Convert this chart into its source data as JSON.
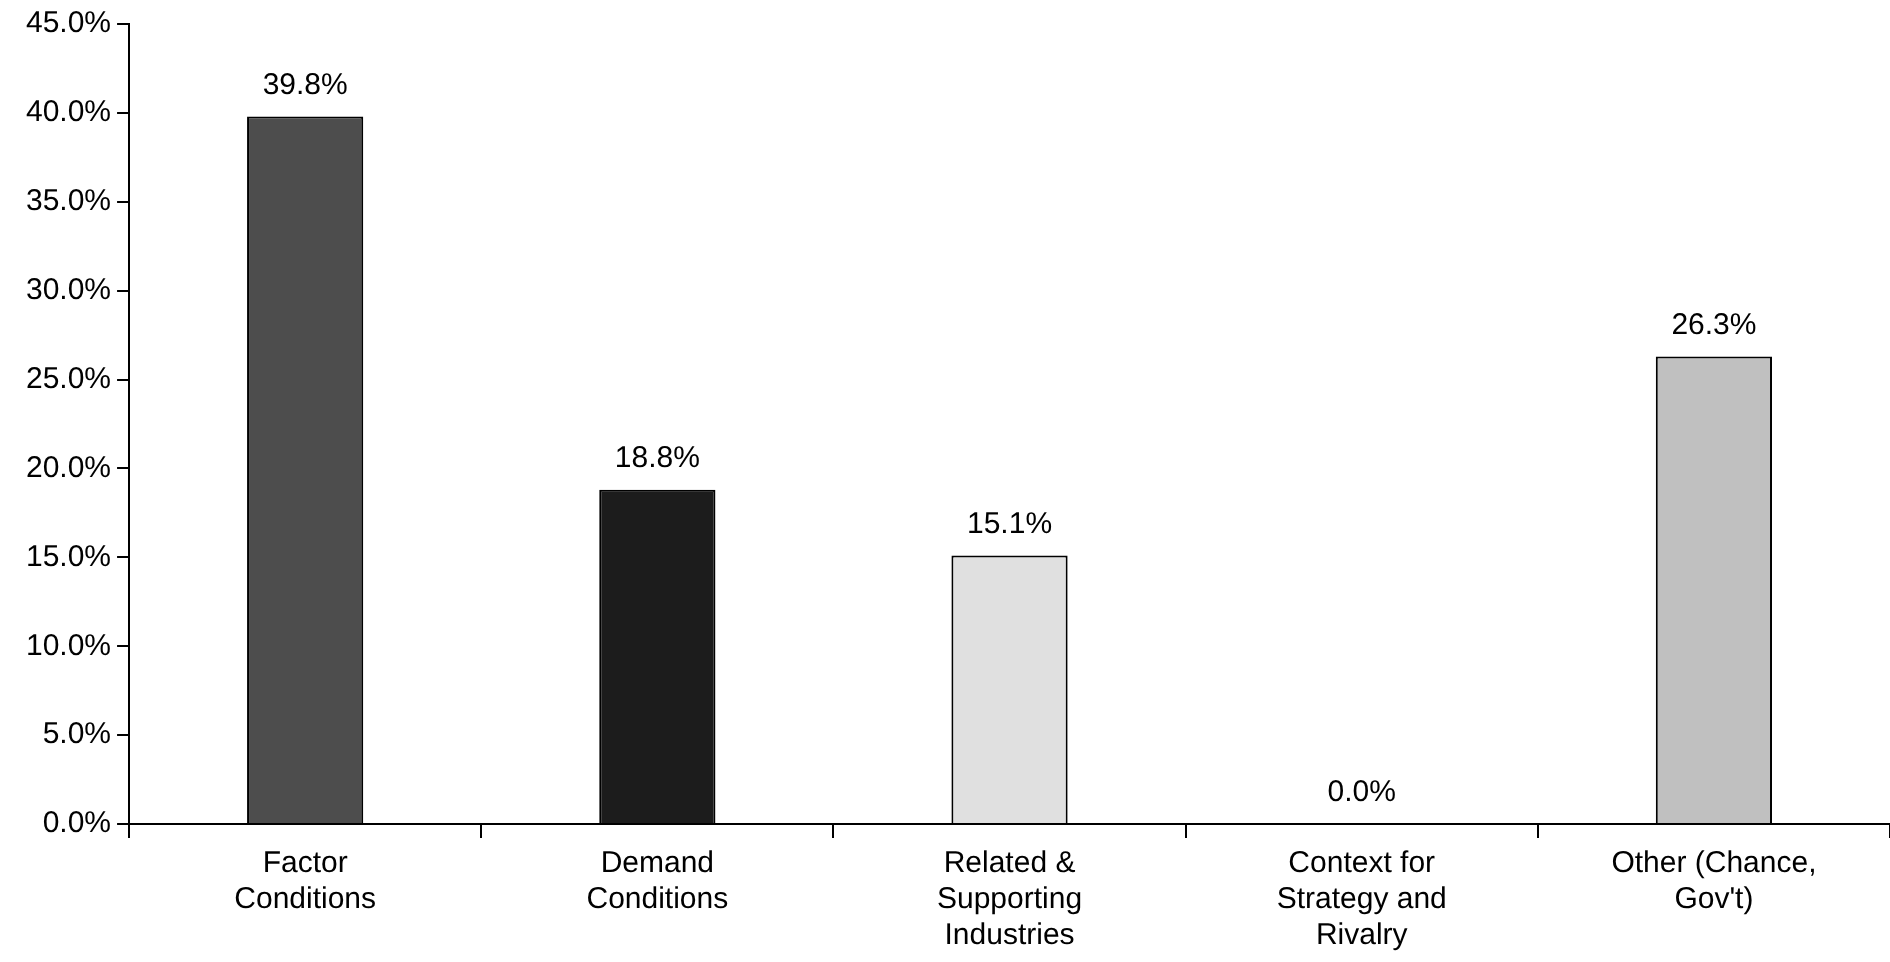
{
  "chart_data": {
    "type": "bar",
    "categories": [
      "Factor Conditions",
      "Demand Conditions",
      "Related & Supporting Industries",
      "Context for Strategy and Rivalry",
      "Other (Chance, Gov't)"
    ],
    "values": [
      39.8,
      18.8,
      15.1,
      0.0,
      26.3
    ],
    "colors": [
      "#4d4d4d",
      "#1c1c1c",
      "#e0e0e0",
      "#c0c0c0",
      "#c0c0c0"
    ],
    "value_labels": [
      "39.8%",
      "18.8%",
      "15.1%",
      "0.0%",
      "26.3%"
    ],
    "ylim": [
      0,
      45
    ],
    "yticks": [
      {
        "value": 0,
        "label": "0.0%"
      },
      {
        "value": 5,
        "label": "5.0%"
      },
      {
        "value": 10,
        "label": "10.0%"
      },
      {
        "value": 15,
        "label": "15.0%"
      },
      {
        "value": 20,
        "label": "20.0%"
      },
      {
        "value": 25,
        "label": "25.0%"
      },
      {
        "value": 30,
        "label": "30.0%"
      },
      {
        "value": 35,
        "label": "35.0%"
      },
      {
        "value": 40,
        "label": "40.0%"
      },
      {
        "value": 45,
        "label": "45.0%"
      }
    ],
    "grid": false,
    "legend": false
  }
}
